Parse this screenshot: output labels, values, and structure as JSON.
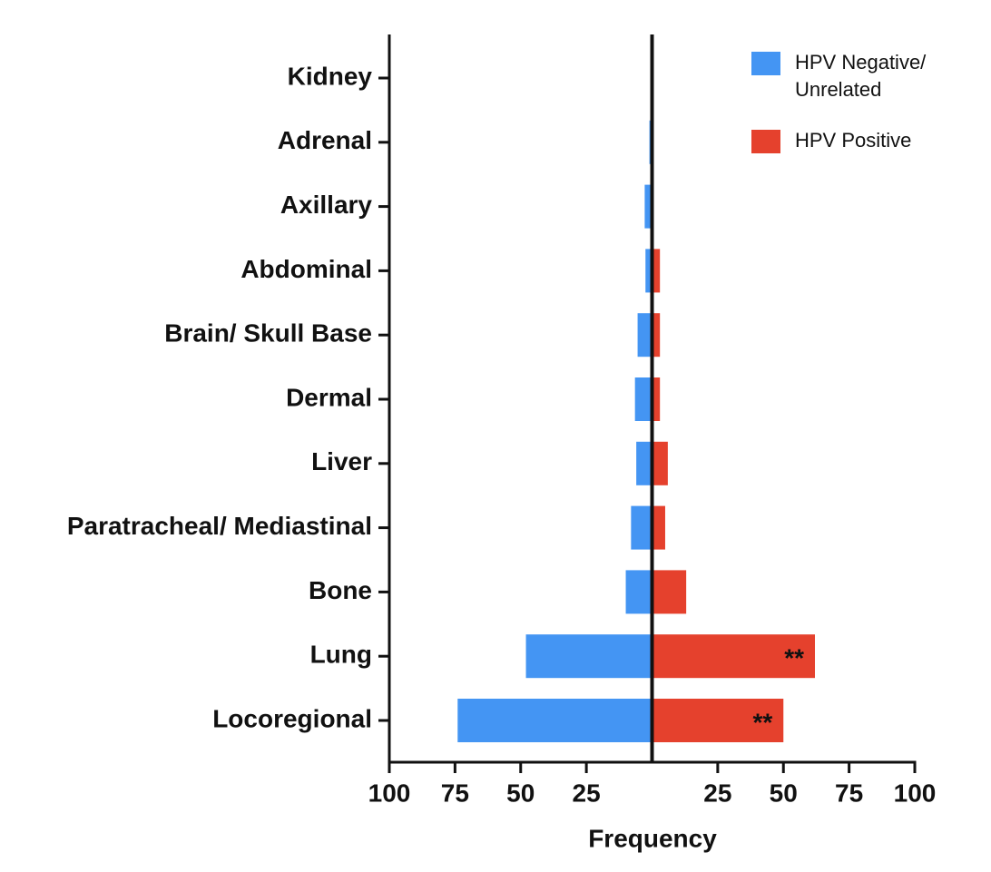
{
  "chart_data": {
    "type": "diverging-bar",
    "orientation": "horizontal",
    "x_label": "Frequency",
    "categories": [
      "Kidney",
      "Adrenal",
      "Axillary",
      "Abdominal",
      "Brain/ Skull Base",
      "Dermal",
      "Liver",
      "Paratracheal/ Mediastinal",
      "Bone",
      "Lung",
      "Locoregional"
    ],
    "series": [
      {
        "name": "HPV Negative/ Unrelated",
        "color": "#4495f3",
        "values": [
          0,
          -1,
          -2.8,
          -2.5,
          -5.5,
          -6.5,
          -6,
          -8,
          -10,
          -48,
          -74
        ]
      },
      {
        "name": "HPV Positive",
        "color": "#e5412d",
        "values": [
          0,
          0,
          0,
          3,
          3,
          3,
          6,
          5,
          13,
          62,
          50
        ]
      }
    ],
    "annotations": [
      {
        "text": "**",
        "category": "Lung",
        "series": "HPV Positive"
      },
      {
        "text": "**",
        "category": "Locoregional",
        "series": "HPV Positive"
      }
    ],
    "xlim": [
      -100,
      100
    ],
    "xticks": [
      {
        "value": -100,
        "label": "100"
      },
      {
        "value": -75,
        "label": "75"
      },
      {
        "value": -50,
        "label": "50"
      },
      {
        "value": -25,
        "label": "25"
      },
      25,
      50,
      75,
      100
    ],
    "legend": "top-right"
  }
}
